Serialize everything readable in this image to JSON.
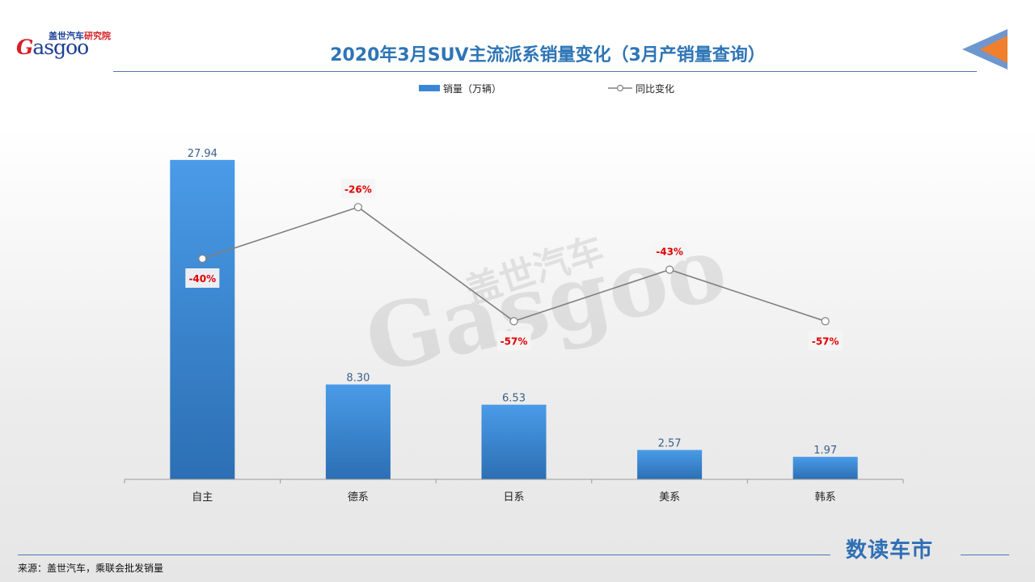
{
  "header": {
    "logo_cn": "盖世汽车",
    "logo_cn_sub": "研究院",
    "logo_en_g": "G",
    "logo_en_rest": "asgoo",
    "title": "2020年3月SUV主流派系销量变化（3月产销量查询）"
  },
  "watermark": {
    "cn": "盖世汽车",
    "en": "Gasgoo"
  },
  "chart_data": {
    "type": "bar",
    "categories": [
      "自主",
      "德系",
      "日系",
      "美系",
      "韩系"
    ],
    "series": [
      {
        "name": "销量（万辆）",
        "type": "bar",
        "values": [
          27.94,
          8.3,
          6.53,
          2.57,
          1.97
        ],
        "labels": [
          "27.94",
          "8.30",
          "6.53",
          "2.57",
          "1.97"
        ],
        "color": "#3a86d6"
      },
      {
        "name": "同比变化",
        "type": "line",
        "values": [
          -40,
          -26,
          -57,
          -43,
          -57
        ],
        "labels": [
          "-40%",
          "-26%",
          "-57%",
          "-43%",
          "-57%"
        ],
        "label_positions": [
          "below",
          "above",
          "below",
          "above",
          "below"
        ],
        "color": "#808080",
        "label_color": "#e00000"
      }
    ],
    "ylim": [
      0,
      28
    ],
    "y2lim": [
      -100,
      0
    ],
    "grid": false,
    "legend": "top-center"
  },
  "footer": {
    "source": "来源：盖世汽车，乘联会批发销量",
    "brand": "数读车市"
  }
}
